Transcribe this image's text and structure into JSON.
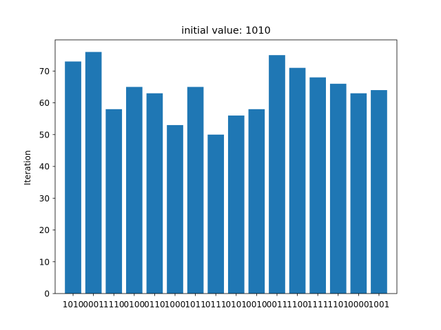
{
  "chart_data": {
    "type": "bar",
    "title": "initial value: 1010",
    "xlabel": "",
    "ylabel": "Iteration",
    "categories": [
      "1010",
      "0001",
      "1110",
      "0100",
      "0110",
      "1000",
      "1011",
      "0111",
      "0101",
      "0010",
      "0011",
      "1100",
      "1111",
      "1101",
      "0000",
      "1001"
    ],
    "values": [
      73,
      76,
      58,
      65,
      63,
      53,
      65,
      50,
      56,
      58,
      75,
      71,
      68,
      66,
      63,
      64
    ],
    "ylim": [
      0,
      79.8
    ],
    "yticks": [
      0,
      10,
      20,
      30,
      40,
      50,
      60,
      70
    ],
    "grid": false,
    "bar_color": "#1f77b4"
  }
}
